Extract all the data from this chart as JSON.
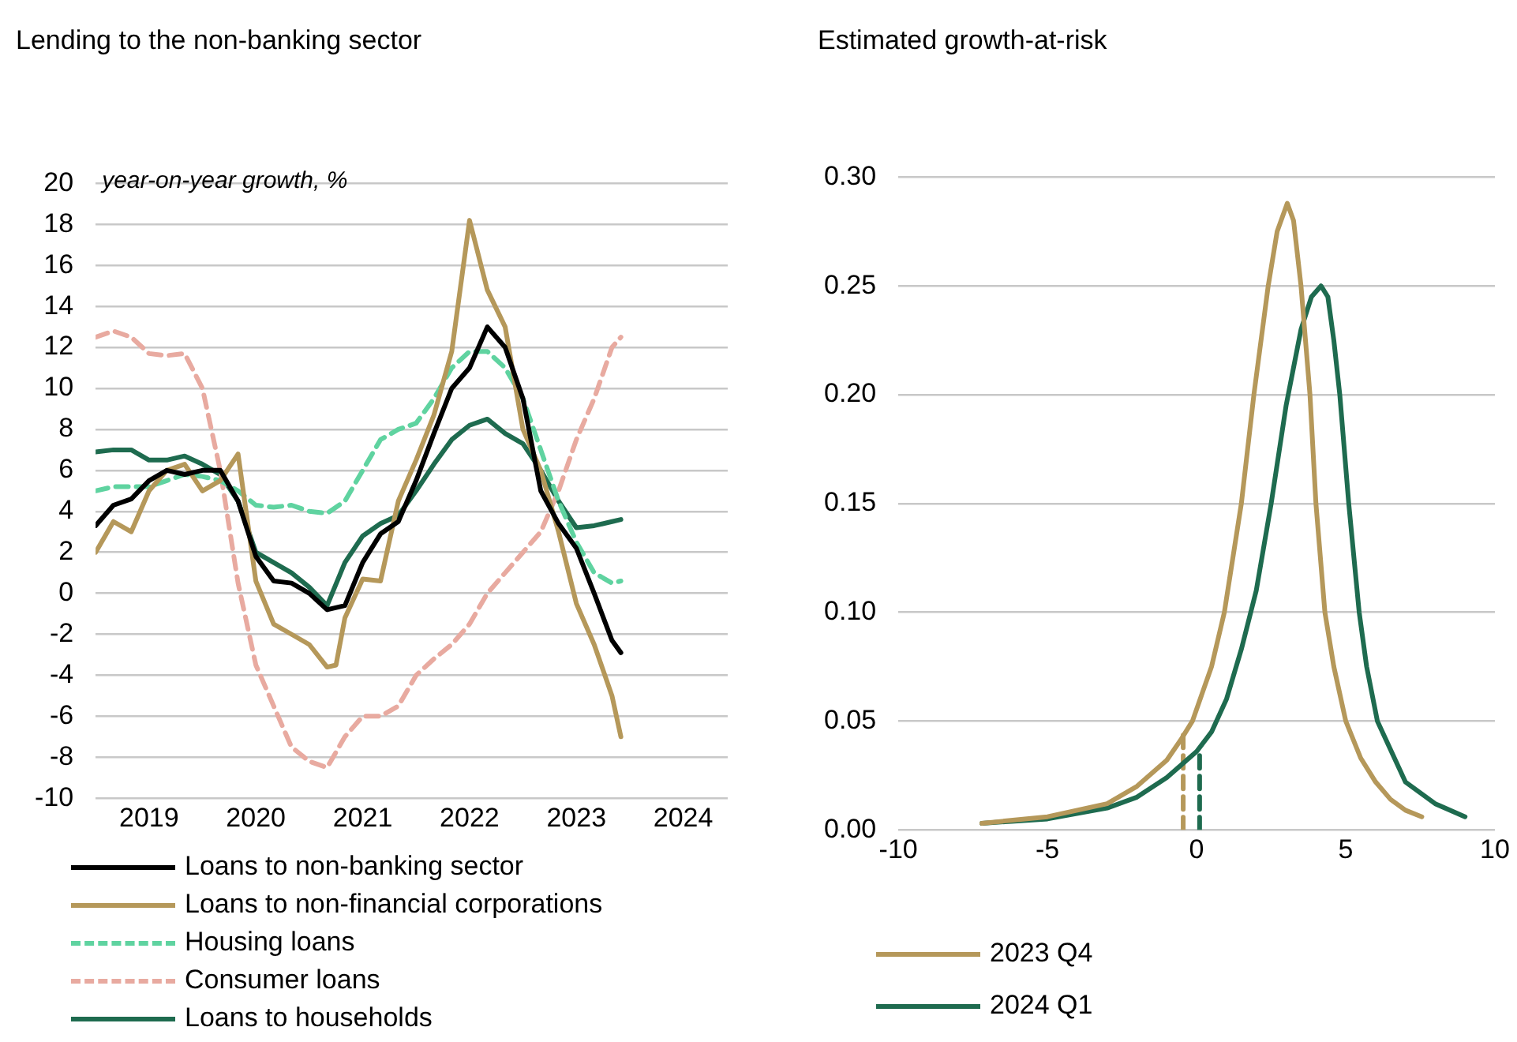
{
  "chart_data": [
    {
      "type": "line",
      "title": "Lending to the non-banking sector",
      "ylabel": "year-on-year growth, %",
      "marker": "none",
      "grid": "y",
      "legend": "bottom",
      "x": [
        "2019-01",
        "2019-03",
        "2019-05",
        "2019-07",
        "2019-09",
        "2019-11",
        "2020-01",
        "2020-03",
        "2020-05",
        "2020-07",
        "2020-09",
        "2020-11",
        "2021-01",
        "2021-03",
        "2021-05",
        "2021-07",
        "2021-09",
        "2021-11",
        "2022-01",
        "2022-03",
        "2022-05",
        "2022-07",
        "2022-09",
        "2022-11",
        "2023-01",
        "2023-03",
        "2023-05",
        "2023-07",
        "2023-09",
        "2023-11",
        "2023-12"
      ],
      "xlim": [
        "2019-01",
        "2024-12"
      ],
      "xticks": [
        {
          "value": "2019-07",
          "label": "2019"
        },
        {
          "value": "2020-07",
          "label": "2020"
        },
        {
          "value": "2021-07",
          "label": "2021"
        },
        {
          "value": "2022-07",
          "label": "2022"
        },
        {
          "value": "2023-07",
          "label": "2023"
        },
        {
          "value": "2024-07",
          "label": "2024"
        }
      ],
      "ylim": [
        -10,
        20
      ],
      "yticks": [
        -10,
        -8,
        -6,
        -4,
        -2,
        0,
        2,
        4,
        6,
        8,
        10,
        12,
        14,
        16,
        18,
        20
      ],
      "series": [
        {
          "name": "Loans to non-banking sector",
          "color": "#000000",
          "line_style": "solid",
          "values": [
            3.3,
            4.3,
            4.6,
            5.5,
            6.0,
            5.8,
            6.0,
            6.0,
            4.5,
            1.8,
            0.6,
            0.5,
            0.0,
            -0.8,
            -0.6,
            1.5,
            2.9,
            3.5,
            5.5,
            7.8,
            10.0,
            11.0,
            13.0,
            12.0,
            9.5,
            5.0,
            3.4,
            2.2,
            0.0,
            -2.3,
            -2.9
          ]
        },
        {
          "name": "Loans to non-financial corporations",
          "color": "#b5985a",
          "line_style": "solid",
          "x": [
            "2019-01",
            "2019-03",
            "2019-05",
            "2019-07",
            "2019-09",
            "2019-11",
            "2020-01",
            "2020-03",
            "2020-05",
            "2020-07",
            "2020-09",
            "2020-11",
            "2021-01",
            "2021-03",
            "2021-04",
            "2021-05",
            "2021-07",
            "2021-09",
            "2021-11",
            "2022-01",
            "2022-03",
            "2022-05",
            "2022-07",
            "2022-09",
            "2022-11",
            "2023-01",
            "2023-03",
            "2023-05",
            "2023-07",
            "2023-09",
            "2023-11",
            "2023-12"
          ],
          "values": [
            2.0,
            3.5,
            3.0,
            5.0,
            6.0,
            6.3,
            5.0,
            5.5,
            6.8,
            0.6,
            -1.5,
            -2.0,
            -2.5,
            -3.6,
            -3.5,
            -1.2,
            0.7,
            0.6,
            4.5,
            6.5,
            8.7,
            11.8,
            18.2,
            14.8,
            13.0,
            8.0,
            6.0,
            3.0,
            -0.5,
            -2.5,
            -5.0,
            -7.0
          ]
        },
        {
          "name": "Housing loans",
          "color": "#5fd3a0",
          "line_style": "dashed",
          "values": [
            5.0,
            5.2,
            5.2,
            5.2,
            5.5,
            5.8,
            5.7,
            5.5,
            5.0,
            4.3,
            4.2,
            4.3,
            4.0,
            3.9,
            4.5,
            6.0,
            7.5,
            8.0,
            8.3,
            9.5,
            11.0,
            11.8,
            11.8,
            11.0,
            9.5,
            7.0,
            4.5,
            2.5,
            1.0,
            0.5,
            0.6
          ]
        },
        {
          "name": "Consumer loans",
          "color": "#e8aaa0",
          "line_style": "dashed",
          "values": [
            12.5,
            12.8,
            12.5,
            11.7,
            11.6,
            11.7,
            10.0,
            6.0,
            0.5,
            -3.5,
            -5.5,
            -7.5,
            -8.2,
            -8.5,
            -7.0,
            -6.0,
            -6.0,
            -5.5,
            -4.0,
            -3.2,
            -2.5,
            -1.5,
            0.0,
            1.0,
            2.0,
            3.0,
            5.0,
            7.5,
            9.5,
            12.0,
            12.5
          ]
        },
        {
          "name": "Loans to households",
          "color": "#1e6b4f",
          "line_style": "solid",
          "values": [
            6.9,
            7.0,
            7.0,
            6.5,
            6.5,
            6.7,
            6.3,
            5.8,
            4.5,
            2.0,
            1.5,
            1.0,
            0.3,
            -0.6,
            1.5,
            2.8,
            3.4,
            3.8,
            5.0,
            6.3,
            7.5,
            8.2,
            8.5,
            7.8,
            7.3,
            6.0,
            4.5,
            3.2,
            3.3,
            3.5,
            3.6
          ]
        }
      ]
    },
    {
      "type": "line",
      "title": "Estimated growth-at-risk",
      "marker": "none",
      "grid": "y",
      "legend": "bottom left",
      "xlim": [
        -10,
        10
      ],
      "xticks": [
        -10,
        -5,
        0,
        5,
        10
      ],
      "ylim": [
        0,
        0.3
      ],
      "yticks": [
        {
          "value": 0,
          "label": "0.00"
        },
        {
          "value": 0.05,
          "label": "0.05"
        },
        {
          "value": 0.1,
          "label": "0.10"
        },
        {
          "value": 0.15,
          "label": "0.15"
        },
        {
          "value": 0.2,
          "label": "0.20"
        },
        {
          "value": 0.25,
          "label": "0.25"
        },
        {
          "value": 0.3,
          "label": "0.30"
        }
      ],
      "series": [
        {
          "name": "2023 Q4",
          "color": "#b5985a",
          "line_style": "solid",
          "x": [
            -7.2,
            -5,
            -3,
            -2,
            -1,
            -0.5,
            -0.14,
            0.5,
            0.93,
            1.5,
            1.92,
            2.4,
            2.7,
            3.04,
            3.25,
            3.5,
            3.8,
            4.0,
            4.3,
            4.6,
            5.0,
            5.5,
            6,
            6.5,
            7,
            7.55
          ],
          "values": [
            0.003,
            0.006,
            0.012,
            0.02,
            0.032,
            0.042,
            0.05,
            0.075,
            0.1,
            0.15,
            0.2,
            0.25,
            0.275,
            0.288,
            0.28,
            0.25,
            0.2,
            0.15,
            0.1,
            0.075,
            0.05,
            0.033,
            0.022,
            0.014,
            0.009,
            0.006
          ]
        },
        {
          "name": "2024 Q1",
          "color": "#1e6b4f",
          "line_style": "solid",
          "x": [
            -7.2,
            -5,
            -3,
            -2,
            -1,
            0,
            0.5,
            1,
            1.5,
            2,
            2.5,
            3,
            3.5,
            3.85,
            4.17,
            4.4,
            4.6,
            4.8,
            5.1,
            5.45,
            5.7,
            6.06,
            7,
            8,
            9
          ],
          "values": [
            0.003,
            0.005,
            0.01,
            0.015,
            0.024,
            0.036,
            0.045,
            0.06,
            0.083,
            0.11,
            0.15,
            0.195,
            0.23,
            0.245,
            0.25,
            0.245,
            0.225,
            0.2,
            0.15,
            0.1,
            0.075,
            0.05,
            0.022,
            0.012,
            0.006
          ]
        },
        {
          "color": "#b5985a",
          "line_style": "dashed",
          "x": [
            -0.45,
            -0.45
          ],
          "values": [
            0,
            0.045
          ]
        },
        {
          "color": "#1e6b4f",
          "line_style": "dashed",
          "x": [
            0.1,
            0.1
          ],
          "values": [
            0,
            0.036
          ]
        }
      ]
    }
  ]
}
